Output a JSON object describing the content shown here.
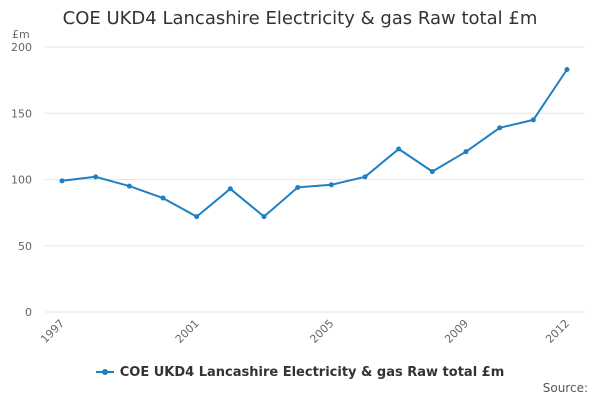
{
  "chart_data": {
    "type": "line",
    "title": "COE UKD4 Lancashire Electricity & gas Raw total £m",
    "ylabel": "£m",
    "xlabel": "",
    "x": [
      1997,
      1998,
      1999,
      2000,
      2001,
      2002,
      2003,
      2004,
      2005,
      2006,
      2007,
      2008,
      2009,
      2010,
      2011,
      2012
    ],
    "x_tick_labels": [
      "1997",
      "2001",
      "2005",
      "2009",
      "2012"
    ],
    "y_ticks": [
      0,
      50,
      100,
      150,
      200
    ],
    "ylim": [
      0,
      200
    ],
    "grid": true,
    "legend_position": "bottom",
    "series": [
      {
        "name": "COE UKD4 Lancashire Electricity & gas Raw total £m",
        "values": [
          99,
          102,
          95,
          86,
          72,
          93,
          72,
          94,
          96,
          102,
          123,
          106,
          121,
          139,
          145,
          183
        ]
      }
    ]
  },
  "colors": {
    "series": "#1f7fc1",
    "grid": "#e6e6e6",
    "axis_text": "#666666"
  },
  "source_label": "Source:"
}
